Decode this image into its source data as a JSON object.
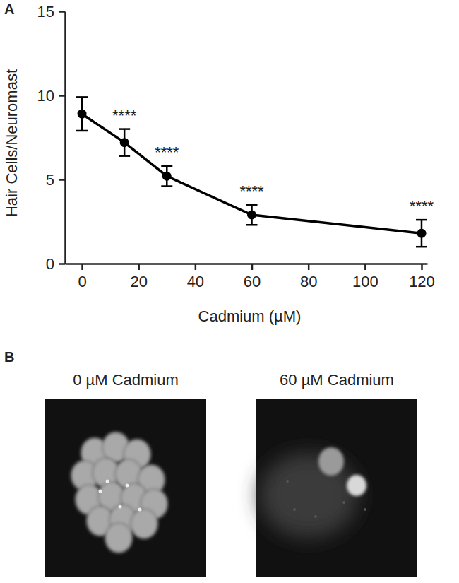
{
  "chart_data": {
    "type": "line",
    "panel": "A",
    "x_label": "Cadmium (µM)",
    "y_label": "Hair Cells/Neuromast",
    "x": [
      0,
      15,
      30,
      60,
      120
    ],
    "values": [
      8.9,
      7.2,
      5.2,
      2.9,
      1.8
    ],
    "errors": [
      1.0,
      0.8,
      0.6,
      0.6,
      0.8
    ],
    "color": "#000000",
    "marker": "circle",
    "line_style": "solid",
    "xlim": [
      -6,
      122
    ],
    "xticks": [
      0,
      20,
      40,
      60,
      80,
      100,
      120
    ],
    "ylim": [
      0,
      15
    ],
    "yticks": [
      0,
      5,
      10,
      15
    ],
    "grid": false,
    "annotations": [
      {
        "x": 15,
        "text": "****"
      },
      {
        "x": 30,
        "text": "****"
      },
      {
        "x": 60,
        "text": "****"
      },
      {
        "x": 120,
        "text": "****"
      }
    ]
  },
  "panel_b": {
    "label": "B",
    "images": [
      {
        "caption": "0 µM Cadmium"
      },
      {
        "caption": "60 µM Cadmium"
      }
    ]
  }
}
